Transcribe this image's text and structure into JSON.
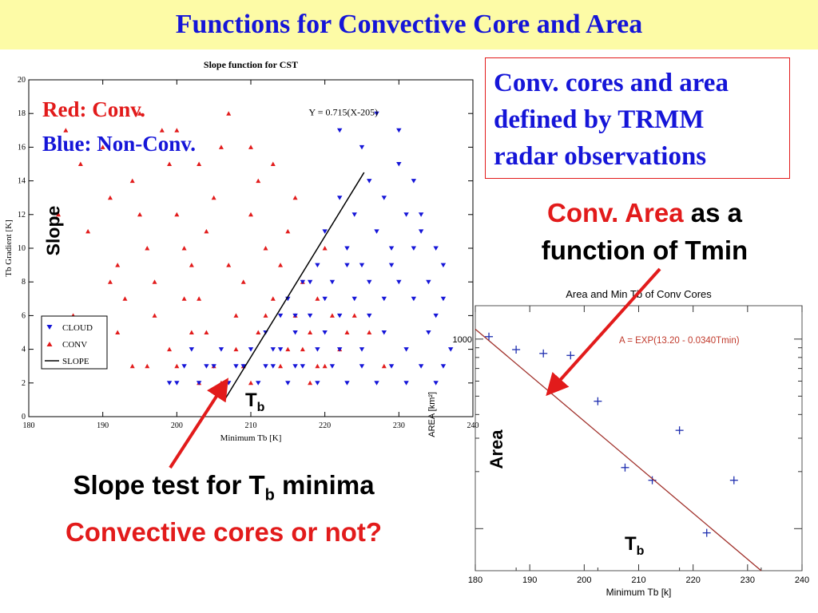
{
  "title": "Functions for Convective Core and Area",
  "left_overlay": {
    "red_label": "Red: Conv.",
    "blue_label": "Blue: Non-Conv.",
    "slope_label": "Slope",
    "tb_main": "T",
    "tb_sub": "b"
  },
  "info_box": {
    "line1": "Conv. cores and area",
    "line2": "defined by TRMM",
    "line3": "radar observations"
  },
  "conv_area_text": {
    "red": "Conv. Area",
    "black1": " as a",
    "line2": "function of Tmin"
  },
  "slope_test": {
    "prefix": "Slope test for T",
    "sub": "b",
    "suffix": " minima",
    "line2": "Convective cores or not?"
  },
  "right_overlay": {
    "area_label": "Area",
    "tb_main": "T",
    "tb_sub": "b"
  },
  "colors": {
    "title_bg": "#fdfba6",
    "title_text": "#1515d8",
    "accent_red": "#e21b1b",
    "conv": "#e21b1b",
    "cloud": "#1515d8",
    "fit_line": "#a0302a",
    "point": "#1f2fb0"
  },
  "chart_data": [
    {
      "type": "scatter",
      "title": "Slope function for CST",
      "xlabel": "Minimum Tb [K]",
      "ylabel": "Tb Gradient [K]",
      "xlim": [
        180,
        240
      ],
      "ylim": [
        0,
        20
      ],
      "xticks": [
        180,
        190,
        200,
        210,
        220,
        230,
        240
      ],
      "yticks": [
        0,
        2,
        4,
        6,
        8,
        10,
        12,
        14,
        16,
        18,
        20
      ],
      "legend": {
        "placement": "lower-left",
        "entries": [
          "CLOUD",
          "CONV",
          "SLOPE"
        ]
      },
      "annotation": "Y = 0.715(X-205)",
      "line": {
        "name": "SLOPE",
        "x": [
          206.6,
          225.3
        ],
        "y": [
          1.1,
          14.5
        ]
      },
      "series": [
        {
          "name": "CONV",
          "marker": "triangle-up",
          "points": [
            [
              185,
              17
            ],
            [
              187,
              15
            ],
            [
              188,
              11
            ],
            [
              190,
              16
            ],
            [
              191,
              13
            ],
            [
              192,
              9
            ],
            [
              193,
              7
            ],
            [
              194,
              14
            ],
            [
              195,
              12
            ],
            [
              196,
              10
            ],
            [
              197,
              8
            ],
            [
              198,
              17
            ],
            [
              199,
              15
            ],
            [
              200,
              12
            ],
            [
              201,
              10
            ],
            [
              202,
              9
            ],
            [
              203,
              7
            ],
            [
              204,
              11
            ],
            [
              205,
              13
            ],
            [
              206,
              16
            ],
            [
              207,
              9
            ],
            [
              208,
              6
            ],
            [
              209,
              8
            ],
            [
              210,
              12
            ],
            [
              211,
              14
            ],
            [
              212,
              10
            ],
            [
              213,
              7
            ],
            [
              214,
              9
            ],
            [
              215,
              11
            ],
            [
              216,
              6
            ],
            [
              217,
              8
            ],
            [
              218,
              5
            ],
            [
              219,
              7
            ],
            [
              220,
              10
            ],
            [
              221,
              6
            ],
            [
              222,
              4
            ],
            [
              224,
              6
            ],
            [
              226,
              5
            ],
            [
              228,
              3
            ],
            [
              186,
              6
            ],
            [
              189,
              4
            ],
            [
              192,
              5
            ],
            [
              196,
              3
            ],
            [
              199,
              4
            ],
            [
              202,
              5
            ],
            [
              205,
              3
            ],
            [
              208,
              4
            ],
            [
              211,
              5
            ],
            [
              214,
              3
            ],
            [
              217,
              4
            ],
            [
              220,
              3
            ],
            [
              195,
              18
            ],
            [
              200,
              17
            ],
            [
              203,
              15
            ],
            [
              207,
              18
            ],
            [
              210,
              16
            ],
            [
              213,
              15
            ],
            [
              216,
              13
            ],
            [
              197,
              6
            ],
            [
              201,
              7
            ],
            [
              204,
              5
            ],
            [
              209,
              3
            ],
            [
              212,
              6
            ],
            [
              215,
              4
            ],
            [
              219,
              3
            ],
            [
              184,
              12
            ],
            [
              191,
              8
            ],
            [
              194,
              3
            ],
            [
              223,
              5
            ],
            [
              206,
              2
            ],
            [
              203,
              2
            ],
            [
              200,
              3
            ],
            [
              218,
              2
            ],
            [
              210,
              2
            ]
          ]
        },
        {
          "name": "CLOUD",
          "marker": "triangle-down",
          "points": [
            [
              199,
              2
            ],
            [
              201,
              3
            ],
            [
              203,
              2
            ],
            [
              205,
              3
            ],
            [
              207,
              2
            ],
            [
              209,
              3
            ],
            [
              211,
              2
            ],
            [
              213,
              3
            ],
            [
              215,
              2
            ],
            [
              217,
              3
            ],
            [
              219,
              2
            ],
            [
              221,
              3
            ],
            [
              223,
              2
            ],
            [
              225,
              3
            ],
            [
              227,
              2
            ],
            [
              229,
              3
            ],
            [
              231,
              2
            ],
            [
              233,
              3
            ],
            [
              235,
              2
            ],
            [
              236,
              3
            ],
            [
              210,
              4
            ],
            [
              212,
              5
            ],
            [
              214,
              4
            ],
            [
              216,
              5
            ],
            [
              218,
              6
            ],
            [
              220,
              5
            ],
            [
              222,
              6
            ],
            [
              224,
              7
            ],
            [
              226,
              6
            ],
            [
              228,
              7
            ],
            [
              230,
              8
            ],
            [
              232,
              7
            ],
            [
              234,
              8
            ],
            [
              236,
              9
            ],
            [
              215,
              7
            ],
            [
              217,
              8
            ],
            [
              219,
              9
            ],
            [
              221,
              8
            ],
            [
              223,
              10
            ],
            [
              225,
              9
            ],
            [
              227,
              11
            ],
            [
              229,
              10
            ],
            [
              231,
              12
            ],
            [
              233,
              11
            ],
            [
              235,
              10
            ],
            [
              220,
              11
            ],
            [
              222,
              13
            ],
            [
              224,
              12
            ],
            [
              226,
              14
            ],
            [
              228,
              13
            ],
            [
              230,
              15
            ],
            [
              232,
              14
            ],
            [
              222,
              17
            ],
            [
              225,
              16
            ],
            [
              227,
              18
            ],
            [
              230,
              17
            ],
            [
              233,
              12
            ],
            [
              235,
              6
            ],
            [
              237,
              4
            ],
            [
              234,
              5
            ],
            [
              231,
              4
            ],
            [
              228,
              5
            ],
            [
              225,
              4
            ],
            [
              222,
              4
            ],
            [
              219,
              4
            ],
            [
              216,
              3
            ],
            [
              213,
              4
            ],
            [
              236,
              7
            ],
            [
              232,
              10
            ],
            [
              229,
              9
            ],
            [
              226,
              8
            ],
            [
              223,
              9
            ],
            [
              220,
              7
            ],
            [
              218,
              8
            ],
            [
              216,
              6
            ],
            [
              214,
              6
            ],
            [
              212,
              3
            ],
            [
              208,
              3
            ],
            [
              206,
              4
            ],
            [
              204,
              3
            ],
            [
              202,
              4
            ],
            [
              200,
              2
            ]
          ]
        }
      ]
    },
    {
      "type": "scatter",
      "title": "Area and Min Tb of Conv Cores",
      "xlabel": "Minimum Tb [k]",
      "ylabel": "AREA [km²]",
      "xlim": [
        180,
        240
      ],
      "xticks": [
        180,
        190,
        200,
        210,
        220,
        230,
        240
      ],
      "y_scale": "log",
      "ylabels_shown": [
        "1000"
      ],
      "annotation": "A = EXP(13.20 - 0.0340Tmin)",
      "fit": "A = EXP(13.20 - 0.0340Tmin)",
      "series": [
        {
          "name": "",
          "marker": "plus",
          "points": [
            [
              182.5,
              1030
            ],
            [
              187.5,
              880
            ],
            [
              192.5,
              840
            ],
            [
              197.5,
              820
            ],
            [
              202.5,
              470
            ],
            [
              207.5,
              210
            ],
            [
              212.5,
              180
            ],
            [
              217.5,
              330
            ],
            [
              222.5,
              95
            ],
            [
              227.5,
              180
            ]
          ]
        }
      ]
    }
  ]
}
